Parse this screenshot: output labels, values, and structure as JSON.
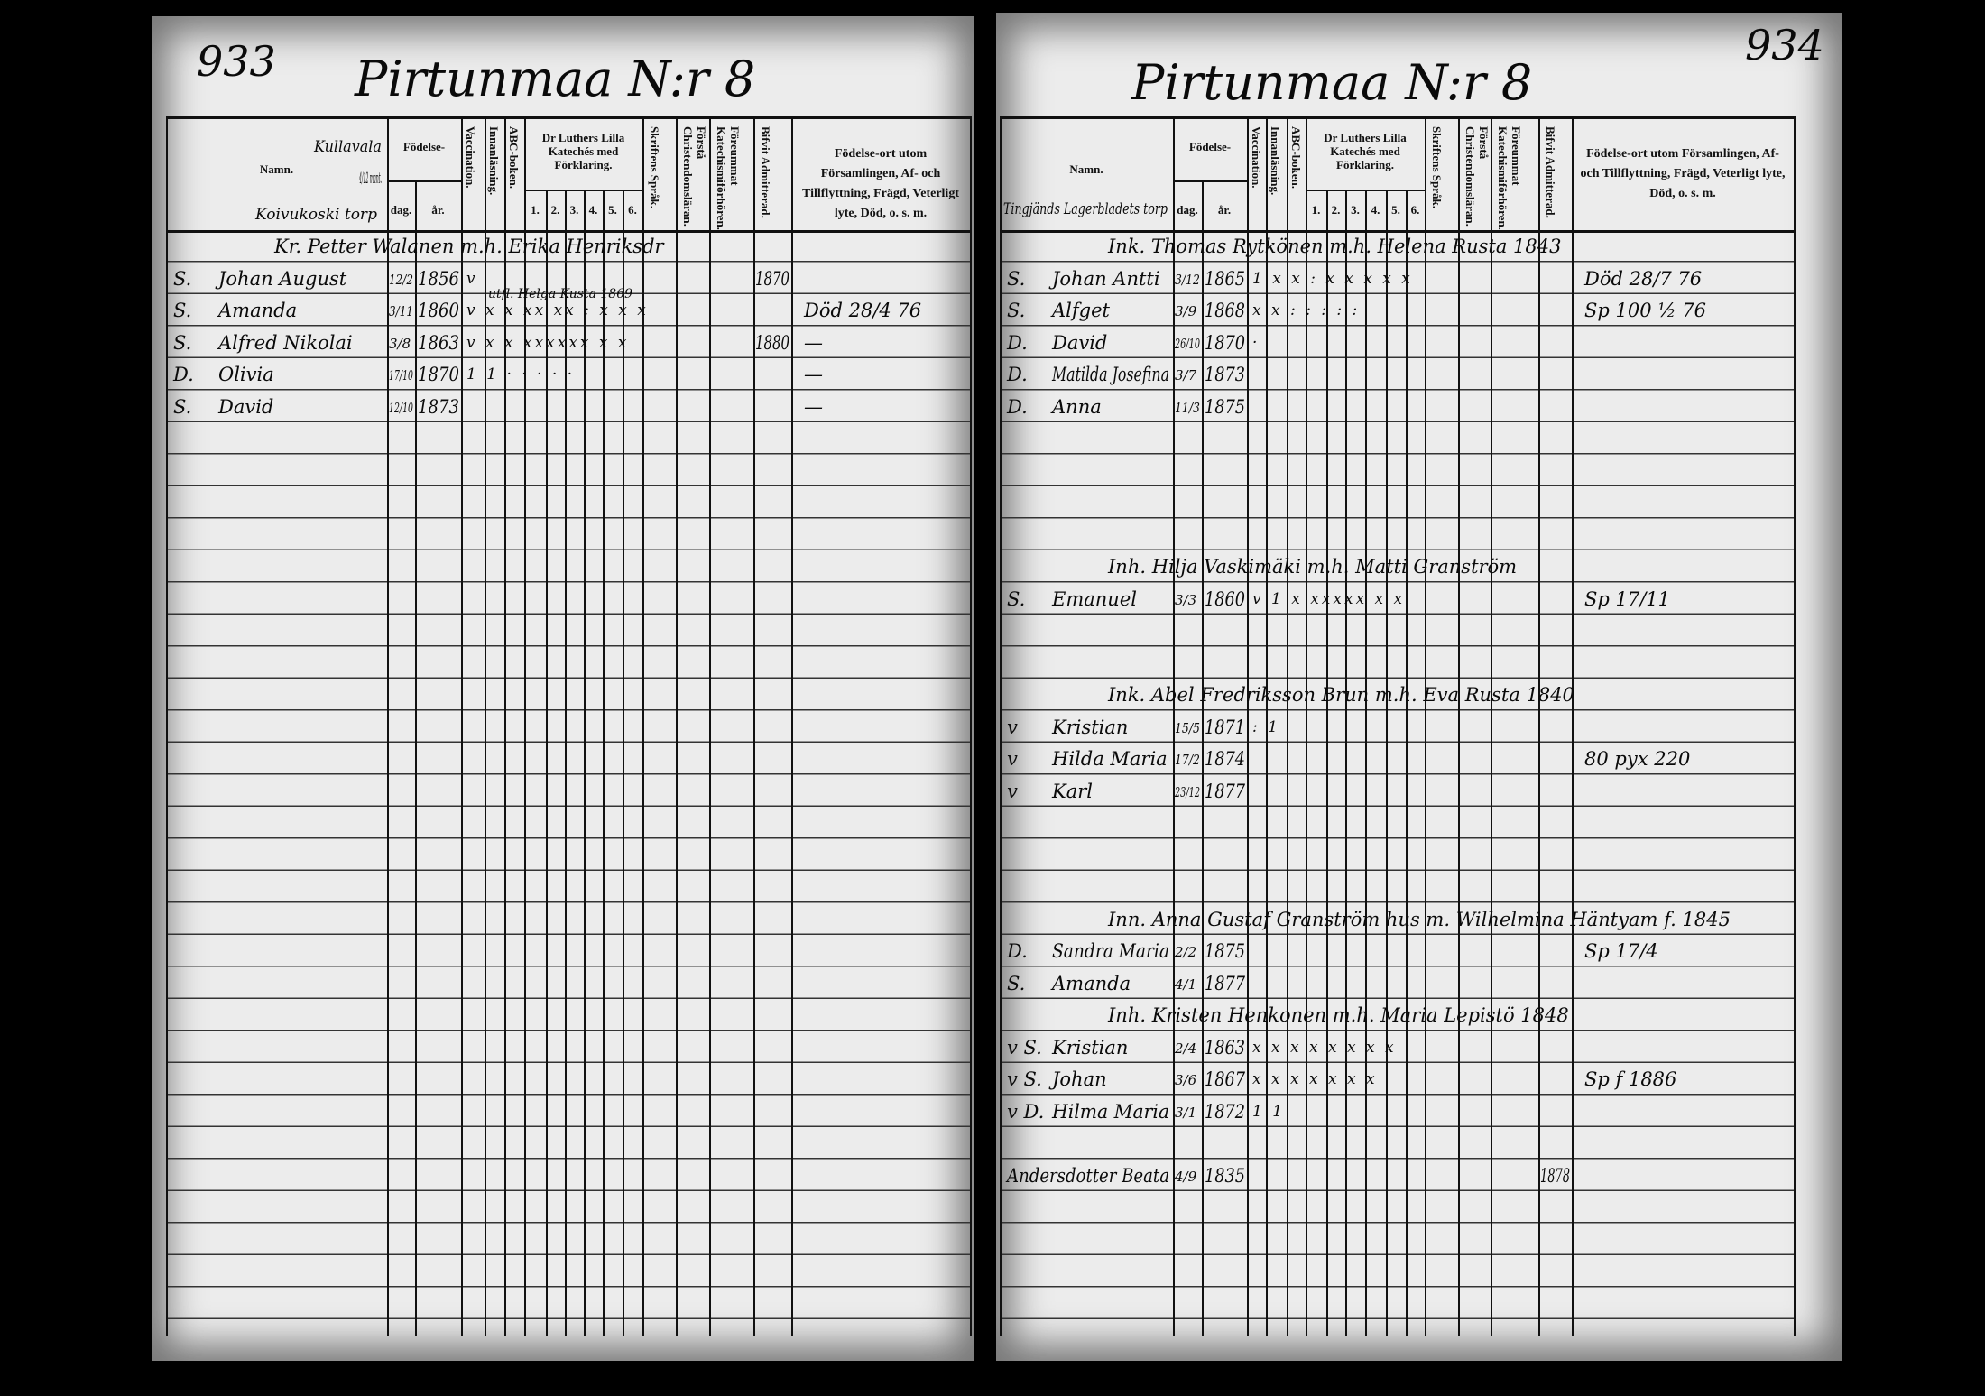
{
  "headers": {
    "name": "Namn.",
    "birth": "Födelse-",
    "day": "dag.",
    "year": "år.",
    "vaccination": "Vaccination.",
    "reading": "Innanläsning.",
    "abc": "ABC-boken.",
    "catechism": "Dr Luthers Lilla Katechés med Förklaring.",
    "catechism_parts": [
      "1.",
      "2.",
      "3.",
      "4.",
      "5.",
      "6."
    ],
    "scripture": "Skriftens Språk.",
    "doctrine": "Förstå Christendomsläran.",
    "hearings": "Föreummat Katechismiförhören.",
    "admitted": "Bifvit Admitterad.",
    "remarks": "Födelse-ort utom Församlingen, Af- och Tillflyttning, Frägd, Veterligt lyte, Död, o. s. m."
  },
  "left_page": {
    "page_number": "933",
    "title": "Pirtunmaa N:r 8",
    "corner_notes": [
      "Kullavala",
      "4/12 mant.",
      "Koivukoski torp"
    ],
    "households": [
      {
        "head": "Kr. Petter Walanen m.h. Erika Henriksdr",
        "note": "utfl. Helga Kusta 1869",
        "members": [
          {
            "rel": "S.",
            "name": "Johan August",
            "day": "12/2",
            "year": "1856",
            "marks": "v",
            "admitted": "1870",
            "remark": ""
          },
          {
            "rel": "S.",
            "name": "Amanda",
            "day": "3/11",
            "year": "1860",
            "marks": "v x x xx xx : x x x",
            "admitted": "",
            "remark": "Död 28/4 76"
          },
          {
            "rel": "S.",
            "name": "Alfred Nikolai",
            "day": "3/8",
            "year": "1863",
            "marks": "v x x xxxxxx x x",
            "admitted": "1880",
            "remark": "—"
          },
          {
            "rel": "D.",
            "name": "Olivia",
            "day": "17/10",
            "year": "1870",
            "marks": "1 1 · · · · ·",
            "admitted": "",
            "remark": "—"
          },
          {
            "rel": "S.",
            "name": "David",
            "day": "12/10",
            "year": "1873",
            "marks": "",
            "admitted": "",
            "remark": "—"
          }
        ]
      }
    ]
  },
  "right_page": {
    "page_number": "934",
    "title": "Pirtunmaa N:r 8",
    "corner_notes": [
      "Tingjänds Lagerbladets torp"
    ],
    "households": [
      {
        "head": "Ink. Thomas Rytkönen m.h. Helena Rusta 1843",
        "note": "",
        "members": [
          {
            "rel": "S.",
            "name": "Johan Antti",
            "day": "3/12",
            "year": "1865",
            "marks": "1 x x : x x x x x",
            "admitted": "",
            "remark": "Död 28/7 76"
          },
          {
            "rel": "S.",
            "name": "Alfget",
            "day": "3/9",
            "year": "1868",
            "marks": "x x : : : : :",
            "admitted": "",
            "remark": "Sp 100 ½ 76"
          },
          {
            "rel": "D.",
            "name": "David",
            "day": "26/10",
            "year": "1870",
            "marks": "·",
            "admitted": "",
            "remark": ""
          },
          {
            "rel": "D.",
            "name": "Matilda Josefina",
            "day": "3/7",
            "year": "1873",
            "marks": "",
            "admitted": "",
            "remark": ""
          },
          {
            "rel": "D.",
            "name": "Anna",
            "day": "11/3",
            "year": "1875",
            "marks": "",
            "admitted": "",
            "remark": ""
          }
        ]
      },
      {
        "head": "Inh. Hilja Vaskimäki m.h. Matti Granström",
        "note": "",
        "members": [
          {
            "rel": "S.",
            "name": "Emanuel",
            "day": "3/3",
            "year": "1860",
            "marks": "v 1 x xxxxx x x",
            "admitted": "",
            "remark": "Sp 17/11"
          }
        ]
      },
      {
        "head": "Ink. Abel Fredriksson Brun m.h. Eva Rusta 1840",
        "note": "",
        "members": [
          {
            "rel": "v",
            "name": "Kristian",
            "day": "15/5",
            "year": "1871",
            "marks": ": 1",
            "admitted": "",
            "remark": ""
          },
          {
            "rel": "v",
            "name": "Hilda Maria",
            "day": "17/2",
            "year": "1874",
            "marks": "",
            "admitted": "",
            "remark": "80 pyx 220"
          },
          {
            "rel": "v",
            "name": "Karl",
            "day": "23/12",
            "year": "1877",
            "marks": "",
            "admitted": "",
            "remark": ""
          }
        ]
      },
      {
        "head": "Inn. Anna Gustaf Granström hus m. Wilhelmina Häntyam f. 1845",
        "note": "",
        "members": [
          {
            "rel": "D.",
            "name": "Sandra Maria",
            "day": "2/2",
            "year": "1875",
            "marks": "",
            "admitted": "",
            "remark": "Sp 17/4"
          },
          {
            "rel": "S.",
            "name": "Amanda",
            "day": "4/1",
            "year": "1877",
            "marks": "",
            "admitted": "",
            "remark": ""
          }
        ]
      },
      {
        "head": "Inh. Kristen Henkonen m.h. Maria Lepistö 1848",
        "note": "",
        "members": [
          {
            "rel": "v S.",
            "name": "Kristian",
            "day": "2/4",
            "year": "1863",
            "marks": "x x x x x x x x",
            "admitted": "",
            "remark": ""
          },
          {
            "rel": "v S.",
            "name": "Johan",
            "day": "3/6",
            "year": "1867",
            "marks": "x x x x x x x",
            "admitted": "",
            "remark": "Sp f 1886"
          },
          {
            "rel": "v D.",
            "name": "Hilma Maria",
            "day": "3/1",
            "year": "1872",
            "marks": "1 1",
            "admitted": "",
            "remark": ""
          }
        ]
      },
      {
        "head": "",
        "note": "",
        "members": [
          {
            "rel": "",
            "name": "Andersdotter Beata",
            "day": "4/9",
            "year": "1835",
            "marks": "",
            "admitted": "1878",
            "remark": ""
          }
        ]
      }
    ]
  }
}
